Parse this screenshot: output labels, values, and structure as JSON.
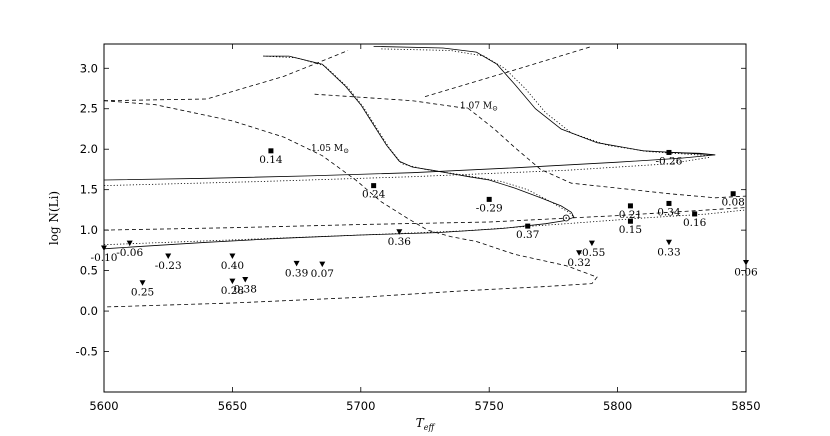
{
  "chart_data": {
    "type": "scatter",
    "title": "",
    "xlabel": "T",
    "xlabel_sub": "eff",
    "ylabel": "log N(Li)",
    "xlim": [
      5600,
      5850
    ],
    "ylim": [
      -1.0,
      3.3
    ],
    "xticks": [
      "5600",
      "5650",
      "5700",
      "5750",
      "5800",
      "5850"
    ],
    "yticks": [
      "-0.5",
      "0.0",
      "0.5",
      "1.0",
      "1.5",
      "2.0",
      "2.5",
      "3.0"
    ],
    "grid": false,
    "legend": "none",
    "model_labels": [
      {
        "text": "1.05 M",
        "sub": "⊙",
        "x": 5688,
        "y": 1.98
      },
      {
        "text": "1.07 M",
        "sub": "⊙",
        "x": 5746,
        "y": 2.5
      }
    ],
    "detections": [
      {
        "x": 5665,
        "y": 1.98,
        "label": "0.14"
      },
      {
        "x": 5705,
        "y": 1.55,
        "label": "0.24"
      },
      {
        "x": 5750,
        "y": 1.38,
        "label": "-0.29"
      },
      {
        "x": 5765,
        "y": 1.05,
        "label": "0.37"
      },
      {
        "x": 5805,
        "y": 1.3,
        "label": "0.21"
      },
      {
        "x": 5805,
        "y": 1.11,
        "label": "0.15"
      },
      {
        "x": 5820,
        "y": 1.33,
        "label": "0.34"
      },
      {
        "x": 5830,
        "y": 1.2,
        "label": "0.16"
      },
      {
        "x": 5820,
        "y": 1.96,
        "label": "-0.26"
      },
      {
        "x": 5845,
        "y": 1.45,
        "label": "0.08"
      }
    ],
    "upper_limits": [
      {
        "x": 5600,
        "y": 0.78,
        "label": "-0.10"
      },
      {
        "x": 5610,
        "y": 0.84,
        "label": "-0.06"
      },
      {
        "x": 5625,
        "y": 0.68,
        "label": "-0.23"
      },
      {
        "x": 5615,
        "y": 0.35,
        "label": "0.25"
      },
      {
        "x": 5650,
        "y": 0.68,
        "label": "0.40"
      },
      {
        "x": 5650,
        "y": 0.37,
        "label": "0.28"
      },
      {
        "x": 5655,
        "y": 0.39,
        "label": "0.38"
      },
      {
        "x": 5675,
        "y": 0.59,
        "label": "0.39"
      },
      {
        "x": 5685,
        "y": 0.58,
        "label": "0.07"
      },
      {
        "x": 5715,
        "y": 0.98,
        "label": "0.36"
      },
      {
        "x": 5785,
        "y": 0.72,
        "label": "0.32"
      },
      {
        "x": 5790,
        "y": 0.84,
        "label": "-0.55"
      },
      {
        "x": 5820,
        "y": 0.85,
        "label": "0.33"
      },
      {
        "x": 5850,
        "y": 0.6,
        "label": "0.06"
      }
    ],
    "tracks": [
      {
        "style": "solid",
        "points": [
          [
            5662,
            3.15
          ],
          [
            5672,
            3.15
          ],
          [
            5685,
            3.05
          ],
          [
            5694,
            2.78
          ],
          [
            5700,
            2.55
          ],
          [
            5705,
            2.3
          ],
          [
            5710,
            2.05
          ],
          [
            5715,
            1.85
          ],
          [
            5720,
            1.78
          ],
          [
            5728,
            1.74
          ],
          [
            5735,
            1.7
          ],
          [
            5742,
            1.66
          ],
          [
            5750,
            1.62
          ],
          [
            5760,
            1.52
          ],
          [
            5770,
            1.4
          ],
          [
            5778,
            1.3
          ],
          [
            5782,
            1.22
          ],
          [
            5783,
            1.16
          ],
          [
            5780,
            1.12
          ],
          [
            5772,
            1.08
          ],
          [
            5755,
            1.02
          ],
          [
            5730,
            0.97
          ],
          [
            5700,
            0.94
          ],
          [
            5670,
            0.9
          ],
          [
            5640,
            0.85
          ],
          [
            5615,
            0.8
          ],
          [
            5600,
            0.77
          ]
        ]
      },
      {
        "style": "solid",
        "points": [
          [
            5600,
            1.62
          ],
          [
            5640,
            1.64
          ],
          [
            5680,
            1.67
          ],
          [
            5720,
            1.71
          ],
          [
            5760,
            1.77
          ],
          [
            5800,
            1.84
          ],
          [
            5825,
            1.89
          ],
          [
            5838,
            1.93
          ],
          [
            5832,
            1.95
          ],
          [
            5820,
            1.96
          ]
        ]
      },
      {
        "style": "solid",
        "points": [
          [
            5705,
            3.27
          ],
          [
            5732,
            3.25
          ],
          [
            5745,
            3.2
          ],
          [
            5753,
            3.05
          ],
          [
            5760,
            2.8
          ],
          [
            5768,
            2.5
          ],
          [
            5778,
            2.25
          ],
          [
            5792,
            2.08
          ],
          [
            5810,
            1.98
          ],
          [
            5828,
            1.95
          ],
          [
            5838,
            1.93
          ]
        ]
      },
      {
        "style": "dotted",
        "points": [
          [
            5662,
            3.15
          ],
          [
            5675,
            3.13
          ],
          [
            5686,
            3.03
          ],
          [
            5695,
            2.76
          ],
          [
            5701,
            2.52
          ],
          [
            5706,
            2.27
          ],
          [
            5711,
            2.02
          ],
          [
            5716,
            1.82
          ],
          [
            5725,
            1.75
          ],
          [
            5740,
            1.68
          ],
          [
            5755,
            1.6
          ],
          [
            5765,
            1.5
          ],
          [
            5774,
            1.35
          ],
          [
            5781,
            1.22
          ],
          [
            5783,
            1.16
          ]
        ]
      },
      {
        "style": "dotted",
        "points": [
          [
            5600,
            1.55
          ],
          [
            5660,
            1.6
          ],
          [
            5720,
            1.66
          ],
          [
            5780,
            1.74
          ],
          [
            5820,
            1.82
          ],
          [
            5836,
            1.9
          ]
        ]
      },
      {
        "style": "dotted",
        "points": [
          [
            5708,
            3.24
          ],
          [
            5735,
            3.22
          ],
          [
            5748,
            3.15
          ],
          [
            5756,
            3.0
          ],
          [
            5764,
            2.75
          ],
          [
            5772,
            2.45
          ],
          [
            5782,
            2.2
          ],
          [
            5796,
            2.05
          ],
          [
            5812,
            1.97
          ],
          [
            5836,
            1.92
          ]
        ]
      },
      {
        "style": "dotted",
        "points": [
          [
            5600,
            0.82
          ],
          [
            5650,
            0.88
          ],
          [
            5700,
            0.94
          ],
          [
            5740,
            0.99
          ],
          [
            5780,
            1.08
          ],
          [
            5810,
            1.15
          ],
          [
            5835,
            1.2
          ],
          [
            5850,
            1.25
          ]
        ]
      },
      {
        "style": "dashed",
        "points": [
          [
            5600,
            2.6
          ],
          [
            5640,
            2.62
          ],
          [
            5670,
            2.9
          ],
          [
            5695,
            3.22
          ]
        ]
      },
      {
        "style": "dashed",
        "points": [
          [
            5600,
            2.6
          ],
          [
            5620,
            2.55
          ],
          [
            5650,
            2.35
          ],
          [
            5670,
            2.15
          ],
          [
            5685,
            1.92
          ],
          [
            5698,
            1.62
          ],
          [
            5708,
            1.35
          ],
          [
            5718,
            1.15
          ],
          [
            5726,
            1.0
          ],
          [
            5735,
            0.92
          ],
          [
            5745,
            0.86
          ],
          [
            5760,
            0.7
          ],
          [
            5780,
            0.56
          ],
          [
            5792,
            0.42
          ],
          [
            5790,
            0.34
          ],
          [
            5770,
            0.3
          ],
          [
            5740,
            0.25
          ],
          [
            5700,
            0.17
          ],
          [
            5650,
            0.1
          ],
          [
            5600,
            0.05
          ]
        ]
      },
      {
        "style": "dashed",
        "points": [
          [
            5682,
            2.68
          ],
          [
            5720,
            2.6
          ],
          [
            5742,
            2.5
          ],
          [
            5752,
            2.25
          ],
          [
            5760,
            2.02
          ],
          [
            5770,
            1.75
          ],
          [
            5782,
            1.58
          ],
          [
            5800,
            1.52
          ],
          [
            5820,
            1.45
          ],
          [
            5838,
            1.4
          ],
          [
            5850,
            1.42
          ]
        ]
      },
      {
        "style": "dashed",
        "points": [
          [
            5725,
            2.65
          ],
          [
            5760,
            2.98
          ],
          [
            5790,
            3.27
          ]
        ]
      },
      {
        "style": "dashed",
        "points": [
          [
            5600,
            1.0
          ],
          [
            5650,
            1.03
          ],
          [
            5700,
            1.07
          ],
          [
            5750,
            1.1
          ],
          [
            5800,
            1.18
          ],
          [
            5850,
            1.28
          ]
        ]
      }
    ],
    "turnoff_marker": {
      "x": 5780,
      "y": 1.15
    }
  }
}
